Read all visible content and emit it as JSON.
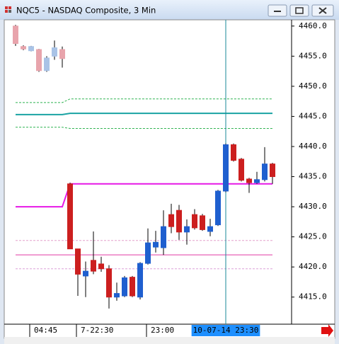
{
  "chart_data": {
    "type": "candlestick",
    "title": "NQC5 - NASDAQ Composite, 3 Min",
    "categories": [
      null,
      null,
      "04:45",
      null,
      null,
      null,
      null,
      null,
      "7-22:30",
      null,
      null,
      null,
      null,
      null,
      null,
      null,
      null,
      "23:00",
      null,
      null,
      null,
      null,
      null,
      null,
      null,
      null,
      null,
      "10-07-14 23:30",
      null,
      null,
      null,
      null,
      null,
      null
    ],
    "open": [
      4460.0,
      4456.6,
      4455.9,
      4456.1,
      4452.6,
      4455.0,
      4456.1,
      4433.8,
      4423.0,
      4418.5,
      4421.1,
      4420.5,
      4419.7,
      4415.0,
      4415.2,
      4418.3,
      4415.0,
      4420.6,
      4423.3,
      4423.2,
      4428.7,
      4429.4,
      4425.8,
      4428.7,
      4428.5,
      4425.9,
      4427.0,
      4432.6,
      4440.3,
      4437.9,
      4434.6,
      4434.0,
      4434.5,
      4437.1
    ],
    "high": [
      4460.2,
      4456.8,
      4456.7,
      4456.2,
      4455.0,
      4457.6,
      4456.6,
      4434.0,
      4423.0,
      4420.9,
      4425.9,
      4421.7,
      4420.3,
      4417.4,
      4418.5,
      4418.5,
      4420.8,
      4426.4,
      4426.0,
      4429.4,
      4430.5,
      4430.3,
      4427.9,
      4429.6,
      4428.8,
      4428.0,
      4432.8,
      4440.5,
      4440.5,
      4438.1,
      4434.8,
      4435.8,
      4439.9,
      4437.3
    ],
    "low": [
      4456.7,
      4456.0,
      4455.8,
      4452.4,
      4452.4,
      4454.4,
      4453.1,
      4423.0,
      4415.2,
      4415.0,
      4418.8,
      4419.2,
      4413.1,
      4414.4,
      4415.0,
      4415.0,
      4414.6,
      4420.4,
      4422.4,
      4422.0,
      4425.6,
      4424.5,
      4423.7,
      4426.2,
      4426.0,
      4425.1,
      4426.8,
      4432.4,
      4437.5,
      4434.2,
      4432.3,
      4433.8,
      4434.2,
      4433.8
    ],
    "close": [
      4457.1,
      4456.2,
      4456.6,
      4452.6,
      4454.7,
      4456.4,
      4454.6,
      4423.0,
      4418.8,
      4419.3,
      4419.3,
      4419.7,
      4415.0,
      4415.6,
      4418.2,
      4415.2,
      4420.6,
      4424.0,
      4424.1,
      4426.7,
      4426.7,
      4425.8,
      4426.7,
      4426.5,
      4426.2,
      4426.7,
      4432.6,
      4440.3,
      4437.7,
      4434.4,
      4434.0,
      4434.5,
      4437.1,
      4435.0
    ],
    "colors": [
      "#e8a4ac",
      "#e8a4ac",
      "#a9c3e6",
      "#e8a4ac",
      "#a9c3e6",
      "#a9c3e6",
      "#e8a4ac",
      "#cc1f1f",
      "#cc1f1f",
      "#1f5fcf",
      "#cc1f1f",
      "#cc1f1f",
      "#cc1f1f",
      "#1f5fcf",
      "#1f5fcf",
      "#cc1f1f",
      "#1f5fcf",
      "#1f5fcf",
      "#1f5fcf",
      "#1f5fcf",
      "#cc1f1f",
      "#cc1f1f",
      "#1f5fcf",
      "#cc1f1f",
      "#cc1f1f",
      "#1f5fcf",
      "#1f5fcf",
      "#1f5fcf",
      "#cc1f1f",
      "#cc1f1f",
      "#cc1f1f",
      "#1f5fcf",
      "#1f5fcf",
      "#cc1f1f"
    ],
    "series": [
      {
        "color": "#2fb350",
        "dashed": true,
        "values": [
          4447.3,
          4447.3,
          4447.3,
          4447.3,
          4447.3,
          4447.3,
          4447.3,
          4447.9,
          4447.9,
          4447.9,
          4447.9,
          4447.9,
          4447.9,
          4447.9,
          4447.9,
          4447.9,
          4447.9,
          4447.9,
          4447.9,
          4447.9,
          4447.9,
          4447.9,
          4447.9,
          4447.9,
          4447.9,
          4447.9,
          4447.9,
          4447.9,
          4447.9,
          4447.9,
          4447.9,
          4447.9,
          4447.9,
          4447.9
        ]
      },
      {
        "color": "#1aa3a3",
        "dashed": false,
        "values": [
          4445.3,
          4445.3,
          4445.3,
          4445.3,
          4445.3,
          4445.3,
          4445.3,
          4445.5,
          4445.5,
          4445.5,
          4445.5,
          4445.5,
          4445.5,
          4445.5,
          4445.5,
          4445.5,
          4445.5,
          4445.5,
          4445.5,
          4445.5,
          4445.5,
          4445.5,
          4445.5,
          4445.5,
          4445.5,
          4445.5,
          4445.5,
          4445.5,
          4445.5,
          4445.5,
          4445.5,
          4445.5,
          4445.5,
          4445.5
        ]
      },
      {
        "color": "#2fb350",
        "dashed": true,
        "values": [
          4443.2,
          4443.2,
          4443.2,
          4443.2,
          4443.2,
          4443.2,
          4443.2,
          4443.0,
          4443.0,
          4443.0,
          4443.0,
          4443.0,
          4443.0,
          4443.0,
          4443.0,
          4443.0,
          4443.0,
          4443.0,
          4443.0,
          4443.0,
          4443.0,
          4443.0,
          4443.0,
          4443.0,
          4443.0,
          4443.0,
          4443.0,
          4443.0,
          4443.0,
          4443.0,
          4443.0,
          4443.0,
          4443.0,
          4443.0
        ]
      },
      {
        "color": "#e619e6",
        "dashed": false,
        "values": [
          4430.0,
          4430.0,
          4430.0,
          4430.0,
          4430.0,
          4430.0,
          4430.0,
          4433.8,
          4433.8,
          4433.8,
          4433.8,
          4433.8,
          4433.8,
          4433.8,
          4433.8,
          4433.8,
          4433.8,
          4433.8,
          4433.8,
          4433.8,
          4433.8,
          4433.8,
          4433.8,
          4433.8,
          4433.8,
          4433.8,
          4433.8,
          4433.8,
          4433.8,
          4433.8,
          4433.8,
          4433.8,
          4433.8,
          4433.8
        ]
      },
      {
        "color": "#e4a0cc",
        "dashed": true,
        "values": [
          4424.4,
          4424.4,
          4424.4,
          4424.4,
          4424.4,
          4424.4,
          4424.4,
          4424.4,
          4424.4,
          4424.4,
          4424.4,
          4424.4,
          4424.4,
          4424.4,
          4424.4,
          4424.4,
          4424.4,
          4424.4,
          4424.4,
          4424.4,
          4424.4,
          4424.4,
          4424.4,
          4424.4,
          4424.4,
          4424.4,
          4424.4,
          4424.4,
          4424.4,
          4424.4,
          4424.4,
          4424.4,
          4424.4,
          4424.4
        ]
      },
      {
        "color": "#f09ad0",
        "dashed": false,
        "values": [
          4422.0,
          4422.0,
          4422.0,
          4422.0,
          4422.0,
          4422.0,
          4422.0,
          4422.0,
          4422.0,
          4422.0,
          4422.0,
          4422.0,
          4422.0,
          4422.0,
          4422.0,
          4422.0,
          4422.0,
          4422.0,
          4422.0,
          4422.0,
          4422.0,
          4422.0,
          4422.0,
          4422.0,
          4422.0,
          4422.0,
          4422.0,
          4422.0,
          4422.0,
          4422.0,
          4422.0,
          4422.0,
          4422.0,
          4422.0
        ]
      },
      {
        "color": "#dca0d8",
        "dashed": true,
        "values": [
          4419.7,
          4419.7,
          4419.7,
          4419.7,
          4419.7,
          4419.7,
          4419.7,
          4419.7,
          4419.7,
          4419.7,
          4419.7,
          4419.7,
          4419.7,
          4419.7,
          4419.7,
          4419.7,
          4419.7,
          4419.7,
          4419.7,
          4419.7,
          4419.7,
          4419.7,
          4419.7,
          4419.7,
          4419.7,
          4419.7,
          4419.7,
          4419.7,
          4419.7,
          4419.7,
          4419.7,
          4419.7,
          4419.7,
          4419.7
        ]
      }
    ],
    "ylim": [
      4410.5,
      4460.8
    ],
    "yticks": [
      {
        "value": 4415,
        "label": "4415.0"
      },
      {
        "value": 4420,
        "label": "4420.0"
      },
      {
        "value": 4425,
        "label": "4425.0"
      },
      {
        "value": 4430,
        "label": "4430.0"
      },
      {
        "value": 4435,
        "label": "4435.0"
      },
      {
        "value": 4440,
        "label": "4440.0"
      },
      {
        "value": 4445,
        "label": "4445.0"
      },
      {
        "value": 4450,
        "label": "4450.0"
      },
      {
        "value": 4455,
        "label": "4455.0"
      },
      {
        "value": 4460,
        "label": "4460.0"
      }
    ],
    "crosshair": true,
    "grid": false
  }
}
